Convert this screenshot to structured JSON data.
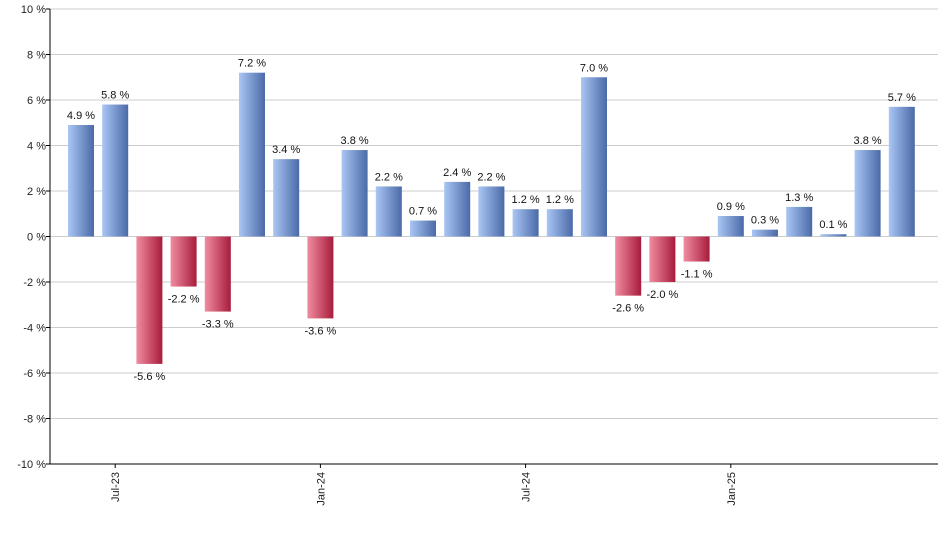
{
  "chart_data": {
    "type": "bar",
    "title": "",
    "xlabel": "",
    "ylabel": "",
    "ylim": [
      -10,
      10
    ],
    "y_ticks": [
      -10,
      -8,
      -6,
      -4,
      -2,
      0,
      2,
      4,
      6,
      8,
      10
    ],
    "y_tick_suffix": " %",
    "grid": true,
    "x_tick_labels": [
      {
        "index": 1,
        "label": "Jul-23"
      },
      {
        "index": 7,
        "label": "Jan-24"
      },
      {
        "index": 13,
        "label": "Jul-24"
      },
      {
        "index": 19,
        "label": "Jan-25"
      }
    ],
    "values": [
      4.9,
      5.8,
      -5.6,
      -2.2,
      -3.3,
      7.2,
      3.4,
      -3.6,
      3.8,
      2.2,
      0.7,
      2.4,
      2.2,
      1.2,
      1.2,
      7.0,
      -2.6,
      -2.0,
      -1.1,
      0.9,
      0.3,
      1.3,
      0.1,
      3.8,
      5.7
    ],
    "data_labels": [
      "4.9 %",
      "5.8 %",
      "-5.6 %",
      "-2.2 %",
      "-3.3 %",
      "7.2 %",
      "3.4 %",
      "-3.6 %",
      "3.8 %",
      "2.2 %",
      "0.7 %",
      "2.4 %",
      "2.2 %",
      "1.2 %",
      "1.2 %",
      "7.0 %",
      "-2.6 %",
      "-2.0 %",
      "-1.1 %",
      "0.9 %",
      "0.3 %",
      "1.3 %",
      "0.1 %",
      "3.8 %",
      "5.7 %"
    ],
    "colors": {
      "positive_dark": "#4a6aa8",
      "positive_light": "#aac6f4",
      "negative_dark": "#a81c3c",
      "negative_light": "#f08ca0",
      "grid": "#cccccc",
      "axis": "#000000"
    }
  }
}
